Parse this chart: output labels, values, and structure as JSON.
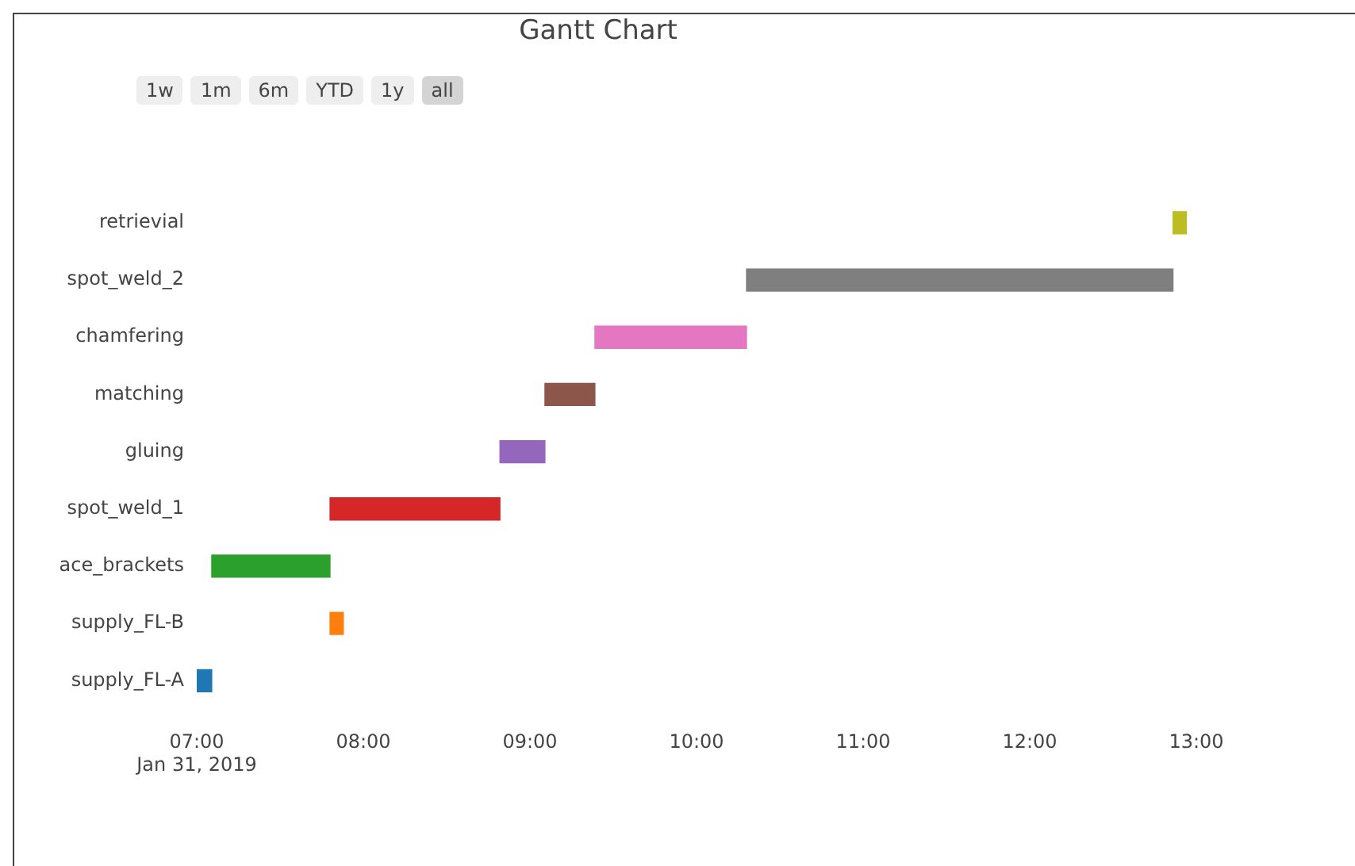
{
  "chart_data": {
    "type": "bar",
    "orientation": "horizontal",
    "title": "Gantt Chart",
    "categories": [
      "retrievial",
      "spot_weld_2",
      "chamfering",
      "matching",
      "gluing",
      "spot_weld_1",
      "ace_brackets",
      "supply_FL-B",
      "supply_FL-A"
    ],
    "base": [
      12.86,
      10.3,
      9.39,
      9.09,
      8.82,
      7.8,
      7.09,
      7.8,
      7.0
    ],
    "values": [
      0.08,
      2.56,
      0.91,
      0.3,
      0.27,
      1.02,
      0.71,
      0.08,
      0.09
    ],
    "colors": [
      "#bcbd22",
      "#7f7f7f",
      "#e377c2",
      "#8c564b",
      "#9467bd",
      "#d62728",
      "#2ca02c",
      "#ff7f0e",
      "#1f77b4"
    ],
    "xlim": [
      7,
      13
    ],
    "xticks": [
      {
        "value": 7,
        "label": "07:00\nJan 31, 2019"
      },
      {
        "value": 8,
        "label": "08:00"
      },
      {
        "value": 9,
        "label": "09:00"
      },
      {
        "value": 10,
        "label": "10:00"
      },
      {
        "value": 11,
        "label": "11:00"
      },
      {
        "value": 12,
        "label": "12:00"
      },
      {
        "value": 13,
        "label": "13:00"
      }
    ],
    "annotations": [
      "1w",
      "1m",
      "6m",
      "YTD",
      "1y",
      "all"
    ]
  }
}
